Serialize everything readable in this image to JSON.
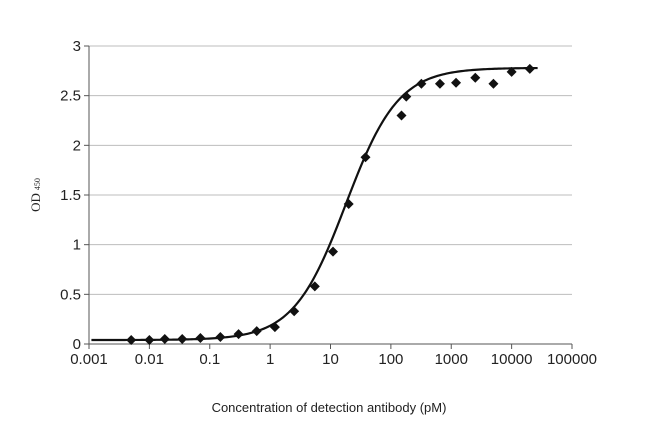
{
  "chart_data": {
    "type": "scatter",
    "xlabel": "Concentration of detection antibody (pM)",
    "ylabel": {
      "main": "OD",
      "subscript": "450"
    },
    "x_scale": "log",
    "xlim": [
      0.001,
      100000
    ],
    "ylim": [
      0,
      3
    ],
    "x_ticks": [
      {
        "value": 0.001,
        "label": "0.001"
      },
      {
        "value": 0.01,
        "label": "0.01"
      },
      {
        "value": 0.1,
        "label": "0.1"
      },
      {
        "value": 1,
        "label": "1"
      },
      {
        "value": 10,
        "label": "10"
      },
      {
        "value": 100,
        "label": "100"
      },
      {
        "value": 1000,
        "label": "1000"
      },
      {
        "value": 10000,
        "label": "10000"
      },
      {
        "value": 100000,
        "label": "100000"
      }
    ],
    "y_ticks": [
      {
        "value": 0,
        "label": "0"
      },
      {
        "value": 0.5,
        "label": "0.5"
      },
      {
        "value": 1,
        "label": "1"
      },
      {
        "value": 1.5,
        "label": "1.5"
      },
      {
        "value": 2,
        "label": "2"
      },
      {
        "value": 2.5,
        "label": "2.5"
      },
      {
        "value": 3,
        "label": "3"
      }
    ],
    "grid": "horizontal",
    "legend": "none",
    "series": [
      {
        "marker": "diamond",
        "color": "#111111",
        "points": [
          {
            "x": 0.005,
            "y": 0.04
          },
          {
            "x": 0.01,
            "y": 0.04
          },
          {
            "x": 0.018,
            "y": 0.05
          },
          {
            "x": 0.035,
            "y": 0.05
          },
          {
            "x": 0.07,
            "y": 0.06
          },
          {
            "x": 0.15,
            "y": 0.07
          },
          {
            "x": 0.3,
            "y": 0.1
          },
          {
            "x": 0.6,
            "y": 0.13
          },
          {
            "x": 1.2,
            "y": 0.17
          },
          {
            "x": 2.5,
            "y": 0.33
          },
          {
            "x": 5.5,
            "y": 0.58
          },
          {
            "x": 11,
            "y": 0.93
          },
          {
            "x": 20,
            "y": 1.41
          },
          {
            "x": 38,
            "y": 1.88
          },
          {
            "x": 150,
            "y": 2.3
          },
          {
            "x": 180,
            "y": 2.49
          },
          {
            "x": 320,
            "y": 2.62
          },
          {
            "x": 650,
            "y": 2.62
          },
          {
            "x": 1200,
            "y": 2.63
          },
          {
            "x": 2500,
            "y": 2.68
          },
          {
            "x": 5000,
            "y": 2.62
          },
          {
            "x": 10000,
            "y": 2.74
          },
          {
            "x": 20000,
            "y": 2.77
          }
        ]
      }
    ],
    "fit_curve": {
      "type": "4PL",
      "bottom": 0.04,
      "top": 2.78,
      "ec50": 18,
      "hill": 1.0,
      "color": "#111111"
    }
  }
}
